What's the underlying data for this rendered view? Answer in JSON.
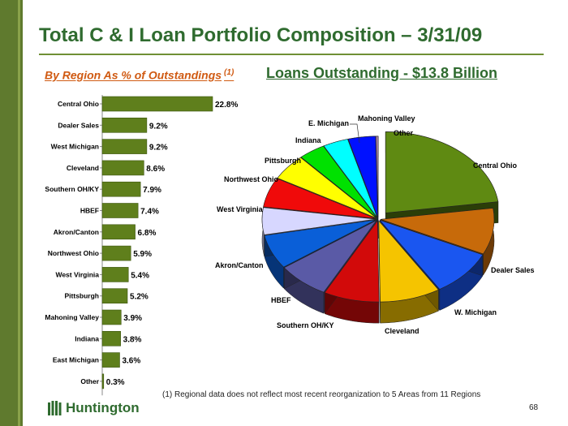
{
  "header": {
    "title": "Total C & I Loan Portfolio Composition – 3/31/09",
    "subtitle_left": "By Region As % of Outstandings",
    "subtitle_left_note": "(1)",
    "subtitle_right": "Loans Outstanding - $13.8 Billion"
  },
  "footnote": "(1)  Regional data does not reflect most recent reorganization to 5 Areas from 11 Regions",
  "page_number": "68",
  "logo": {
    "text": "Huntington",
    "icon": "huntington-building-logo"
  },
  "colors": {
    "bar": "#5f7f1c",
    "title": "#2f6b2f",
    "subtitle": "#d05a12"
  },
  "chart_data": [
    {
      "type": "bar",
      "orientation": "horizontal",
      "categories": [
        "Central Ohio",
        "Dealer Sales",
        "West Michigan",
        "Cleveland",
        "Southern OH/KY",
        "HBEF",
        "Akron/Canton",
        "Northwest Ohio",
        "West Virginia",
        "Pittsburgh",
        "Mahoning Valley",
        "Indiana",
        "East Michigan",
        "Other"
      ],
      "values": [
        22.8,
        9.2,
        9.2,
        8.6,
        7.9,
        7.4,
        6.8,
        5.9,
        5.4,
        5.2,
        3.9,
        3.8,
        3.6,
        0.3
      ],
      "value_labels": [
        "22.8%",
        "9.2%",
        "9.2%",
        "8.6%",
        "7.9%",
        "7.4%",
        "6.8%",
        "5.9%",
        "5.4%",
        "5.2%",
        "3.9%",
        "3.8%",
        "3.6%",
        "0.3%"
      ],
      "unit": "%",
      "xlim": [
        0,
        25
      ],
      "grid": false,
      "legend": "none"
    },
    {
      "type": "pie",
      "style": "3d-exploded",
      "labels": [
        "Central Ohio",
        "Dealer Sales",
        "W. Michigan",
        "Cleveland",
        "Southern OH/KY",
        "HBEF",
        "Akron/Canton",
        "West Virginia",
        "Northwest Ohio",
        "Pittsburgh",
        "Indiana",
        "E. Michigan",
        "Mahoning Valley",
        "Other"
      ],
      "values": [
        22.8,
        9.2,
        9.2,
        8.6,
        7.9,
        7.4,
        6.8,
        5.4,
        5.9,
        5.2,
        3.8,
        3.6,
        3.9,
        0.3
      ],
      "colors": [
        "#5f8a12",
        "#c76a0a",
        "#1a56f0",
        "#f5c400",
        "#d20a0a",
        "#5a5aa6",
        "#0a5fd8",
        "#d7d7ff",
        "#f00a0a",
        "#ffff00",
        "#00e100",
        "#00ffff",
        "#0011ff",
        "#b48cb4"
      ],
      "legend": "none"
    }
  ]
}
